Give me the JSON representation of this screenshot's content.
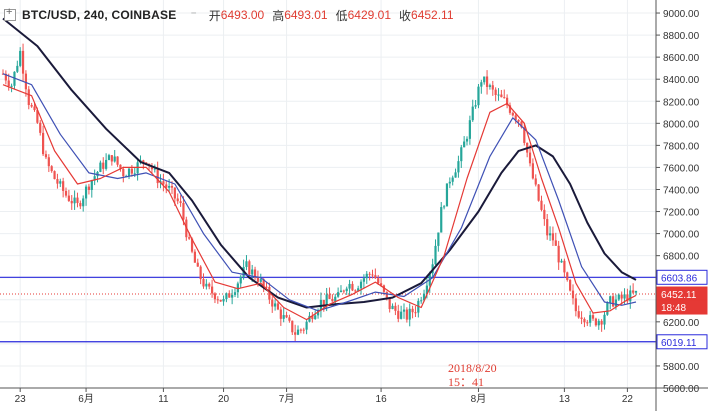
{
  "legend": {
    "symbol": "BTC/USD, 240, COINBASE",
    "caret": "⁻",
    "open_label": "开",
    "open": "6493.00",
    "high_label": "高",
    "high": "6493.01",
    "low_label": "低",
    "low": "6429.01",
    "close_label": "收",
    "close": "6452.11"
  },
  "annotation": {
    "line1": "2018/8/20",
    "line2": "15：41"
  },
  "price_tags": {
    "resistance": "6603.86",
    "current": "6452.11",
    "countdown": "18:48",
    "support": "6019.11"
  },
  "colors": {
    "up": "#26a69a",
    "down": "#ef5350",
    "ma_fast": "#e53935",
    "ma_mid": "#3f51b5",
    "ma_slow": "#1a1a3a",
    "level_line": "#2a2adb",
    "price_line": "#e53935"
  },
  "chart_data": {
    "type": "candlestick",
    "symbol": "BTC/USD",
    "interval": "240",
    "exchange": "COINBASE",
    "ylim": [
      5600,
      9100
    ],
    "y_ticks": [
      "9000.00",
      "8800.00",
      "8600.00",
      "8400.00",
      "8200.00",
      "8000.00",
      "7800.00",
      "7600.00",
      "7400.00",
      "7200.00",
      "7000.00",
      "6800.00",
      "6600.00",
      "6400.00",
      "6200.00",
      "6000.00",
      "5800.00",
      "5600.00"
    ],
    "x_ticks": [
      "23",
      "6月",
      "11",
      "20",
      "7月",
      "16",
      "8月",
      "13",
      "22"
    ],
    "horizontal_levels": [
      6603.86,
      6019.11
    ],
    "current_price": 6452.11,
    "close_path": [
      [
        0,
        8450
      ],
      [
        3,
        8350
      ],
      [
        6,
        8650
      ],
      [
        9,
        8200
      ],
      [
        12,
        8000
      ],
      [
        15,
        7650
      ],
      [
        18,
        7500
      ],
      [
        22,
        7350
      ],
      [
        26,
        7250
      ],
      [
        30,
        7450
      ],
      [
        34,
        7600
      ],
      [
        38,
        7700
      ],
      [
        42,
        7550
      ],
      [
        46,
        7600
      ],
      [
        50,
        7680
      ],
      [
        54,
        7500
      ],
      [
        58,
        7400
      ],
      [
        62,
        7250
      ],
      [
        65,
        6900
      ],
      [
        68,
        6650
      ],
      [
        71,
        6500
      ],
      [
        74,
        6450
      ],
      [
        77,
        6380
      ],
      [
        81,
        6520
      ],
      [
        85,
        6700
      ],
      [
        89,
        6600
      ],
      [
        93,
        6420
      ],
      [
        96,
        6300
      ],
      [
        99,
        6200
      ],
      [
        102,
        6100
      ],
      [
        105,
        6150
      ],
      [
        108,
        6280
      ],
      [
        111,
        6380
      ],
      [
        114,
        6400
      ],
      [
        117,
        6420
      ],
      [
        120,
        6550
      ],
      [
        123,
        6520
      ],
      [
        126,
        6600
      ],
      [
        129,
        6650
      ],
      [
        132,
        6500
      ],
      [
        135,
        6340
      ],
      [
        138,
        6280
      ],
      [
        141,
        6250
      ],
      [
        144,
        6320
      ],
      [
        147,
        6500
      ],
      [
        150,
        6750
      ],
      [
        153,
        7200
      ],
      [
        156,
        7500
      ],
      [
        159,
        7650
      ],
      [
        162,
        7900
      ],
      [
        165,
        8200
      ],
      [
        167,
        8400
      ],
      [
        169,
        8350
      ],
      [
        172,
        8250
      ],
      [
        175,
        8200
      ],
      [
        178,
        8100
      ],
      [
        181,
        8000
      ],
      [
        184,
        7600
      ],
      [
        187,
        7300
      ],
      [
        190,
        7000
      ],
      [
        192,
        6950
      ],
      [
        195,
        6700
      ],
      [
        198,
        6450
      ],
      [
        200,
        6300
      ],
      [
        203,
        6250
      ],
      [
        206,
        6200
      ],
      [
        209,
        6230
      ],
      [
        212,
        6380
      ],
      [
        215,
        6400
      ],
      [
        218,
        6430
      ],
      [
        221,
        6452.11
      ]
    ],
    "ma_fast_path": [
      [
        0,
        8350
      ],
      [
        10,
        8250
      ],
      [
        18,
        7750
      ],
      [
        26,
        7450
      ],
      [
        34,
        7500
      ],
      [
        42,
        7600
      ],
      [
        50,
        7600
      ],
      [
        58,
        7380
      ],
      [
        66,
        6950
      ],
      [
        74,
        6560
      ],
      [
        82,
        6500
      ],
      [
        90,
        6550
      ],
      [
        98,
        6330
      ],
      [
        106,
        6220
      ],
      [
        114,
        6360
      ],
      [
        122,
        6450
      ],
      [
        130,
        6560
      ],
      [
        138,
        6420
      ],
      [
        146,
        6330
      ],
      [
        154,
        6800
      ],
      [
        162,
        7500
      ],
      [
        170,
        8100
      ],
      [
        176,
        8180
      ],
      [
        182,
        8000
      ],
      [
        188,
        7500
      ],
      [
        194,
        7050
      ],
      [
        200,
        6550
      ],
      [
        206,
        6280
      ],
      [
        212,
        6300
      ],
      [
        218,
        6400
      ],
      [
        221,
        6440
      ]
    ],
    "ma_mid_path": [
      [
        0,
        8450
      ],
      [
        10,
        8350
      ],
      [
        20,
        7900
      ],
      [
        30,
        7550
      ],
      [
        40,
        7500
      ],
      [
        50,
        7550
      ],
      [
        60,
        7450
      ],
      [
        70,
        7000
      ],
      [
        80,
        6650
      ],
      [
        90,
        6600
      ],
      [
        100,
        6400
      ],
      [
        110,
        6300
      ],
      [
        120,
        6380
      ],
      [
        130,
        6470
      ],
      [
        140,
        6430
      ],
      [
        150,
        6600
      ],
      [
        160,
        7050
      ],
      [
        170,
        7700
      ],
      [
        178,
        8050
      ],
      [
        186,
        7850
      ],
      [
        194,
        7300
      ],
      [
        202,
        6700
      ],
      [
        210,
        6380
      ],
      [
        216,
        6350
      ],
      [
        221,
        6380
      ]
    ],
    "ma_slow_path": [
      [
        0,
        8950
      ],
      [
        12,
        8700
      ],
      [
        24,
        8300
      ],
      [
        36,
        7950
      ],
      [
        48,
        7650
      ],
      [
        58,
        7550
      ],
      [
        66,
        7300
      ],
      [
        76,
        6900
      ],
      [
        86,
        6600
      ],
      [
        96,
        6420
      ],
      [
        106,
        6330
      ],
      [
        116,
        6360
      ],
      [
        126,
        6380
      ],
      [
        136,
        6420
      ],
      [
        146,
        6550
      ],
      [
        156,
        6850
      ],
      [
        166,
        7200
      ],
      [
        174,
        7550
      ],
      [
        180,
        7750
      ],
      [
        186,
        7800
      ],
      [
        192,
        7700
      ],
      [
        198,
        7450
      ],
      [
        204,
        7100
      ],
      [
        210,
        6820
      ],
      [
        216,
        6650
      ],
      [
        221,
        6580
      ]
    ],
    "x_tick_positions": [
      [
        23,
        6
      ],
      [
        6,
        29
      ],
      [
        11,
        56
      ],
      [
        20,
        77
      ],
      [
        7,
        99
      ],
      [
        16,
        132
      ],
      [
        8,
        166
      ],
      [
        13,
        196
      ],
      [
        22,
        218
      ]
    ]
  }
}
